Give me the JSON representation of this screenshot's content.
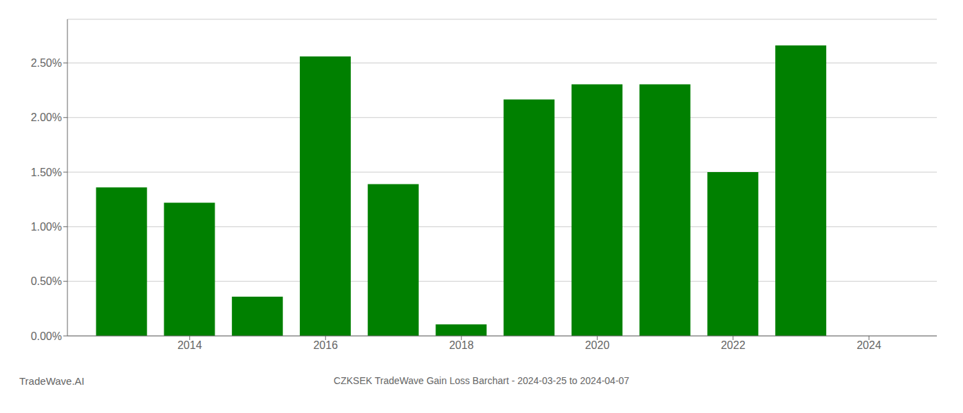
{
  "chart_data": {
    "type": "bar",
    "title": "CZKSEK TradeWave Gain Loss Barchart - 2024-03-25 to 2024-04-07",
    "annotations": [
      "TradeWave.AI"
    ],
    "x": [
      2013,
      2014,
      2015,
      2016,
      2017,
      2018,
      2019,
      2020,
      2021,
      2022,
      2023
    ],
    "values": [
      0.0136,
      0.0122,
      0.0036,
      0.0256,
      0.0139,
      0.00105,
      0.02165,
      0.02305,
      0.02305,
      0.015,
      0.0266
    ],
    "color": "#008000",
    "xlim": [
      2012.2,
      2025.0
    ],
    "xticks": [
      2014,
      2016,
      2018,
      2020,
      2022,
      2024
    ],
    "ylim": [
      0.0,
      0.029
    ],
    "yticks": [
      {
        "value": 0.0,
        "label": "0.00%"
      },
      {
        "value": 0.005,
        "label": "0.50%"
      },
      {
        "value": 0.01,
        "label": "1.00%"
      },
      {
        "value": 0.015,
        "label": "1.50%"
      },
      {
        "value": 0.02,
        "label": "2.00%"
      },
      {
        "value": 0.025,
        "label": "2.50%"
      }
    ],
    "grid": "y"
  }
}
